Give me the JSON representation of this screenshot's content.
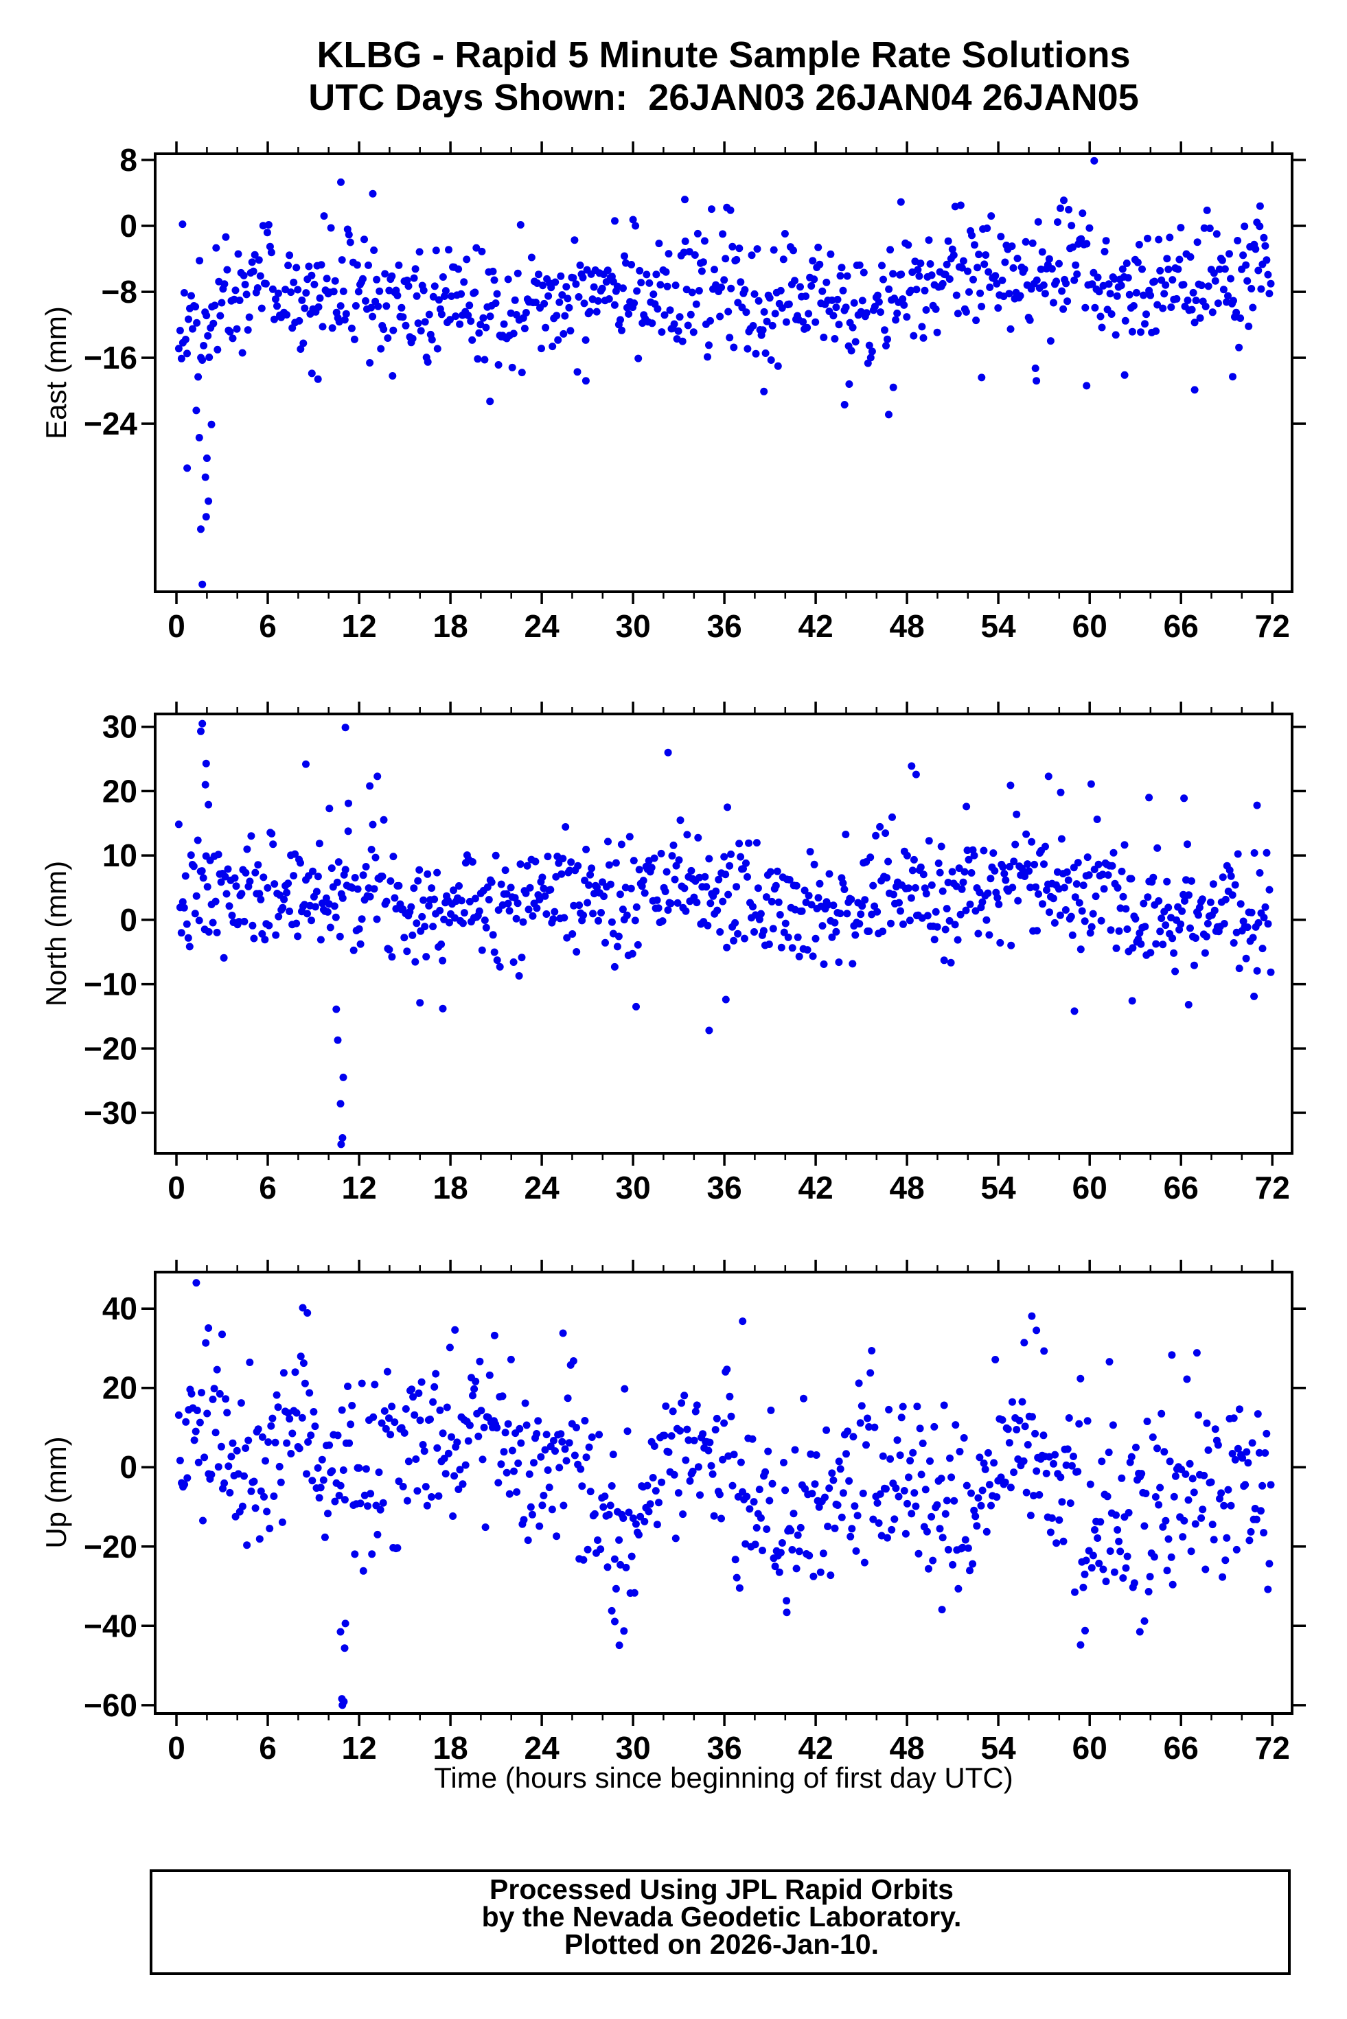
{
  "header": {
    "title": "KLBG - Rapid 5 Minute Sample Rate Solutions",
    "subtitle": "UTC Days Shown:  26JAN03 26JAN04 26JAN05"
  },
  "footer": {
    "line1": "Processed Using JPL Rapid Orbits",
    "line2": "by the Nevada Geodetic Laboratory.",
    "line3": "Plotted on 2026-Jan-10."
  },
  "chart_data": {
    "type": "scatter",
    "marker": {
      "color": "#0000EE"
    },
    "frame_color": "#000000",
    "x": {
      "label": "Time (hours since beginning of first day UTC)",
      "lim": [
        -1.4,
        73.3
      ],
      "major_ticks": [
        0,
        6,
        12,
        18,
        24,
        30,
        36,
        42,
        48,
        54,
        60,
        66,
        72
      ],
      "major_labels": [
        "0",
        "6",
        "12",
        "18",
        "24",
        "30",
        "36",
        "42",
        "48",
        "54",
        "60",
        "66",
        "72"
      ],
      "minor_step": 2
    },
    "subplots": [
      {
        "id": "east",
        "ylabel": "East (mm)",
        "ylim": [
          -44.4,
          8.75
        ],
        "yticks": [
          [
            8,
            "8"
          ],
          [
            0,
            "0"
          ],
          [
            -8,
            "−8"
          ],
          [
            -16,
            "−16"
          ],
          [
            -24,
            "−24"
          ]
        ],
        "gen": {
          "seed": 42,
          "n": 790,
          "sigma": 3.6,
          "clip": [
            -18.5,
            2.6
          ],
          "trend": [
            [
              0,
              -11
            ],
            [
              1,
              -14
            ],
            [
              2,
              -12
            ],
            [
              3,
              -9
            ],
            [
              4,
              -8
            ],
            [
              6,
              -6
            ],
            [
              8,
              -10
            ],
            [
              10,
              -7
            ],
            [
              12,
              -8
            ],
            [
              14,
              -10
            ],
            [
              16,
              -11
            ],
            [
              18,
              -9
            ],
            [
              20,
              -10
            ],
            [
              22,
              -9
            ],
            [
              24,
              -10
            ],
            [
              26,
              -9
            ],
            [
              28,
              -6
            ],
            [
              30,
              -7
            ],
            [
              32,
              -9
            ],
            [
              34,
              -8
            ],
            [
              36,
              -8
            ],
            [
              38,
              -10
            ],
            [
              40,
              -9
            ],
            [
              42,
              -8
            ],
            [
              44,
              -10
            ],
            [
              46,
              -11
            ],
            [
              48,
              -8
            ],
            [
              50,
              -7
            ],
            [
              52,
              -5
            ],
            [
              54,
              -4
            ],
            [
              56,
              -7
            ],
            [
              58,
              -6
            ],
            [
              60,
              -6
            ],
            [
              62,
              -9
            ],
            [
              64,
              -8
            ],
            [
              66,
              -7
            ],
            [
              68,
              -8
            ],
            [
              70,
              -7
            ],
            [
              72,
              -5
            ]
          ]
        },
        "outliers": [
          [
            60.3,
            7.9
          ],
          [
            10.8,
            5.3
          ],
          [
            12.9,
            3.9
          ],
          [
            33.4,
            3.2
          ],
          [
            0.4,
            0.2
          ],
          [
            47.6,
            2.9
          ],
          [
            58.3,
            3.1
          ],
          [
            71.2,
            2.4
          ],
          [
            36.4,
            1.9
          ],
          [
            28.8,
            0.6
          ],
          [
            30.0,
            0.75
          ],
          [
            0.7,
            -29.4
          ],
          [
            1.3,
            -22.4
          ],
          [
            1.5,
            -25.7
          ],
          [
            1.6,
            -36.8
          ],
          [
            1.7,
            -43.5
          ],
          [
            1.9,
            -30.5
          ],
          [
            1.95,
            -35.3
          ],
          [
            2.0,
            -28.2
          ],
          [
            2.1,
            -33.4
          ],
          [
            2.3,
            -24.1
          ],
          [
            8.9,
            -17.9
          ],
          [
            9.3,
            -18.6
          ],
          [
            14.2,
            -18.2
          ],
          [
            20.6,
            -21.3
          ],
          [
            26.9,
            -18.8
          ],
          [
            38.6,
            -20.1
          ],
          [
            43.9,
            -21.7
          ],
          [
            44.2,
            -19.2
          ],
          [
            46.8,
            -22.9
          ],
          [
            47.1,
            -19.6
          ],
          [
            52.9,
            -18.4
          ],
          [
            56.5,
            -18.8
          ],
          [
            59.8,
            -19.4
          ],
          [
            62.3,
            -18.1
          ],
          [
            66.9,
            -19.9
          ],
          [
            69.4,
            -18.3
          ]
        ]
      },
      {
        "id": "north",
        "ylabel": "North (mm)",
        "ylim": [
          -36.3,
          32.0
        ],
        "yticks": [
          [
            30,
            "30"
          ],
          [
            20,
            "20"
          ],
          [
            10,
            "10"
          ],
          [
            0,
            "0"
          ],
          [
            -10,
            "−10"
          ],
          [
            -20,
            "−20"
          ],
          [
            -30,
            "−30"
          ]
        ],
        "gen": {
          "seed": 7,
          "n": 800,
          "sigma": 4.6,
          "clip": [
            -11.5,
            16.5
          ],
          "trend": [
            [
              0,
              2
            ],
            [
              2,
              4
            ],
            [
              4,
              3
            ],
            [
              6,
              5
            ],
            [
              8,
              4
            ],
            [
              10,
              4
            ],
            [
              12,
              6
            ],
            [
              14,
              4
            ],
            [
              16,
              2
            ],
            [
              18,
              3
            ],
            [
              20,
              4
            ],
            [
              22,
              3
            ],
            [
              24,
              4
            ],
            [
              26,
              5
            ],
            [
              28,
              3
            ],
            [
              30,
              2
            ],
            [
              32,
              5
            ],
            [
              34,
              6
            ],
            [
              36,
              4
            ],
            [
              38,
              3
            ],
            [
              40,
              2
            ],
            [
              42,
              3
            ],
            [
              44,
              2
            ],
            [
              46,
              4
            ],
            [
              48,
              5
            ],
            [
              50,
              3
            ],
            [
              52,
              4
            ],
            [
              54,
              6
            ],
            [
              56,
              7
            ],
            [
              58,
              5
            ],
            [
              60,
              4
            ],
            [
              62,
              3
            ],
            [
              64,
              2
            ],
            [
              66,
              1
            ],
            [
              68,
              2
            ],
            [
              70,
              0
            ],
            [
              72,
              2
            ]
          ]
        },
        "outliers": [
          [
            1.6,
            29.3
          ],
          [
            1.7,
            30.5
          ],
          [
            1.9,
            21.0
          ],
          [
            1.95,
            24.3
          ],
          [
            2.1,
            17.9
          ],
          [
            8.5,
            24.2
          ],
          [
            10.05,
            17.3
          ],
          [
            11.1,
            29.9
          ],
          [
            11.3,
            18.1
          ],
          [
            12.7,
            20.8
          ],
          [
            13.2,
            22.3
          ],
          [
            32.3,
            26.0
          ],
          [
            36.2,
            17.5
          ],
          [
            48.3,
            23.9
          ],
          [
            48.6,
            22.6
          ],
          [
            51.9,
            17.6
          ],
          [
            54.8,
            20.9
          ],
          [
            57.3,
            22.3
          ],
          [
            58.1,
            19.8
          ],
          [
            60.1,
            21.1
          ],
          [
            63.9,
            19.0
          ],
          [
            66.2,
            18.9
          ],
          [
            71.0,
            17.8
          ],
          [
            10.5,
            -13.9
          ],
          [
            10.6,
            -18.7
          ],
          [
            10.78,
            -28.6
          ],
          [
            10.82,
            -34.9
          ],
          [
            10.91,
            -33.9
          ],
          [
            10.96,
            -24.5
          ],
          [
            16.0,
            -12.9
          ],
          [
            17.5,
            -13.8
          ],
          [
            30.2,
            -13.5
          ],
          [
            35.0,
            -17.2
          ],
          [
            36.1,
            -12.4
          ],
          [
            59.0,
            -14.2
          ],
          [
            62.8,
            -12.6
          ],
          [
            66.5,
            -13.2
          ],
          [
            70.8,
            -11.9
          ]
        ]
      },
      {
        "id": "up",
        "ylabel": "Up (mm)",
        "ylim": [
          -62.1,
          49.2
        ],
        "yticks": [
          [
            40,
            "40"
          ],
          [
            20,
            "20"
          ],
          [
            0,
            "0"
          ],
          [
            -20,
            "−20"
          ],
          [
            -40,
            "−40"
          ],
          [
            -60,
            "−60"
          ]
        ],
        "gen": {
          "seed": 1337,
          "n": 770,
          "sigma": 11,
          "clip": [
            -34,
            32
          ],
          "trend": [
            [
              0,
              5
            ],
            [
              2,
              14
            ],
            [
              4,
              0
            ],
            [
              6,
              2
            ],
            [
              8,
              12
            ],
            [
              10,
              -2
            ],
            [
              12,
              2
            ],
            [
              14,
              6
            ],
            [
              16,
              2
            ],
            [
              18,
              10
            ],
            [
              20,
              8
            ],
            [
              22,
              0
            ],
            [
              24,
              4
            ],
            [
              26,
              2
            ],
            [
              28,
              -14
            ],
            [
              30,
              -16
            ],
            [
              32,
              2
            ],
            [
              34,
              6
            ],
            [
              36,
              0
            ],
            [
              38,
              -8
            ],
            [
              40,
              -14
            ],
            [
              42,
              -12
            ],
            [
              44,
              -6
            ],
            [
              46,
              -2
            ],
            [
              48,
              -4
            ],
            [
              50,
              -10
            ],
            [
              52,
              -12
            ],
            [
              54,
              2
            ],
            [
              56,
              8
            ],
            [
              58,
              -4
            ],
            [
              60,
              -12
            ],
            [
              62,
              -16
            ],
            [
              64,
              -10
            ],
            [
              66,
              -6
            ],
            [
              68,
              -8
            ],
            [
              70,
              -6
            ],
            [
              72,
              -10
            ]
          ]
        },
        "outliers": [
          [
            1.3,
            46.5
          ],
          [
            2.1,
            35.1
          ],
          [
            3.0,
            33.5
          ],
          [
            8.3,
            40.2
          ],
          [
            8.6,
            38.9
          ],
          [
            18.3,
            34.6
          ],
          [
            20.9,
            33.2
          ],
          [
            25.4,
            33.8
          ],
          [
            37.2,
            36.8
          ],
          [
            55.7,
            31.4
          ],
          [
            56.2,
            38.1
          ],
          [
            56.5,
            34.5
          ],
          [
            57.0,
            29.3
          ],
          [
            61.3,
            26.6
          ],
          [
            65.4,
            28.3
          ],
          [
            10.78,
            -41.5
          ],
          [
            10.87,
            -58.4
          ],
          [
            10.9,
            -60.0
          ],
          [
            11.0,
            -59.1
          ],
          [
            11.05,
            -45.6
          ],
          [
            11.1,
            -39.4
          ],
          [
            28.6,
            -36.2
          ],
          [
            28.8,
            -38.9
          ],
          [
            29.1,
            -44.9
          ],
          [
            29.4,
            -41.3
          ],
          [
            40.1,
            -36.6
          ],
          [
            50.3,
            -35.9
          ],
          [
            59.4,
            -44.8
          ],
          [
            59.7,
            -41.2
          ],
          [
            63.3,
            -41.5
          ],
          [
            63.6,
            -38.8
          ]
        ]
      }
    ]
  }
}
